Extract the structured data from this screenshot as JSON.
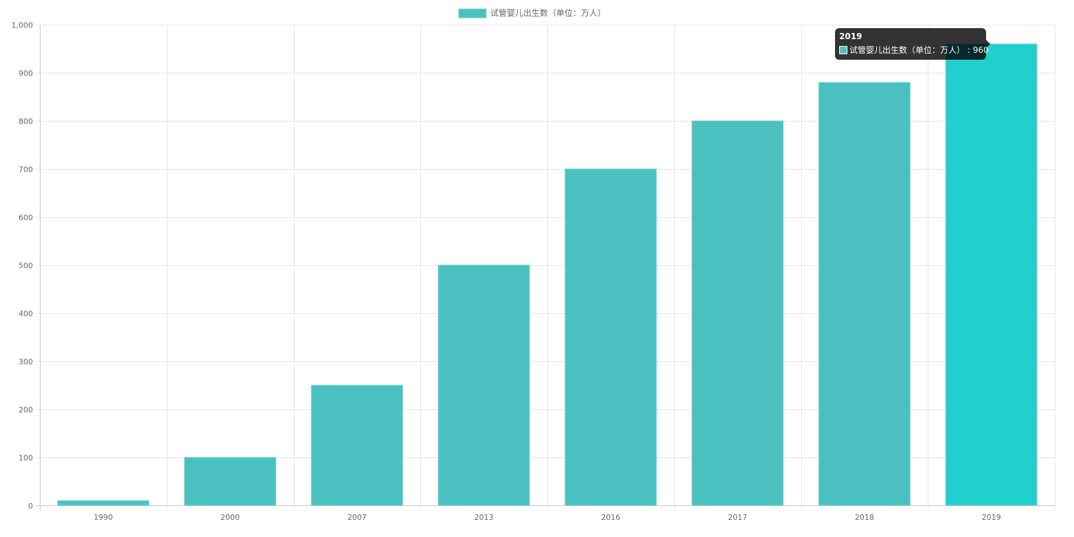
{
  "chart_data": {
    "type": "bar",
    "categories": [
      "1990",
      "2000",
      "2007",
      "2013",
      "2016",
      "2017",
      "2018",
      "2019"
    ],
    "series": [
      {
        "name": "试管婴儿出生数（单位：万人）",
        "values": [
          10,
          100,
          250,
          500,
          700,
          800,
          880,
          960
        ]
      }
    ],
    "ylim": [
      0,
      1000
    ],
    "y_ticks": [
      "0",
      "100",
      "200",
      "300",
      "400",
      "500",
      "600",
      "700",
      "800",
      "900",
      "1,000"
    ],
    "grid": true,
    "legend_position": "top-center",
    "colors": {
      "bar": "#4bc0c0",
      "bar_hover": "#22cfcf",
      "bar_border": "#7fd6d6",
      "grid": "#e5e5e5",
      "text": "#666666"
    },
    "highlighted_index": 7
  },
  "tooltip": {
    "title": "2019",
    "label": "试管婴儿出生数（单位：万人）",
    "value": "960"
  }
}
